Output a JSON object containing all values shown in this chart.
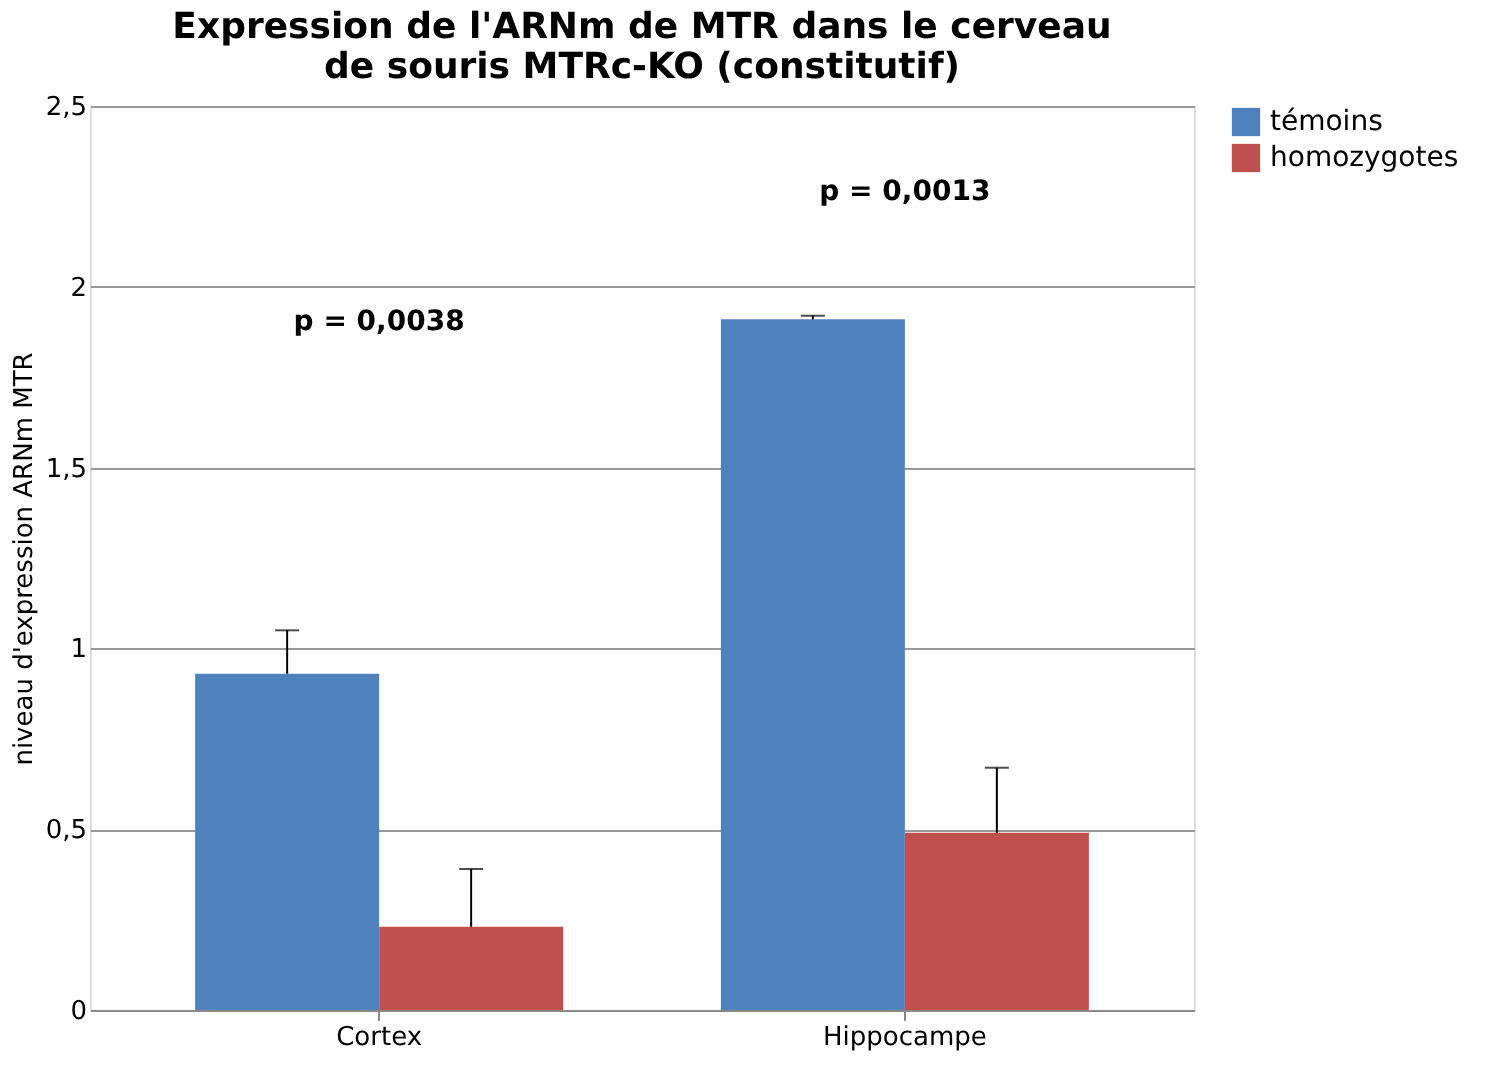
{
  "chart_data": {
    "type": "bar",
    "title": [
      "Expression de l'ARNm de MTR dans le cerveau",
      "de souris MTRc-KO (constitutif)"
    ],
    "ylabel": "niveau d'expression ARNm MTR",
    "categories": [
      "Cortex",
      "Hippocampe"
    ],
    "series": [
      {
        "name": "témoins",
        "color": "#4f81bd",
        "values": [
          0.93,
          1.91
        ],
        "errors": [
          [
            0.93,
            1.05
          ],
          [
            1.91,
            1.92
          ]
        ]
      },
      {
        "name": "homozygotes",
        "color": "#c0504d",
        "values": [
          0.23,
          0.49
        ],
        "errors": [
          [
            0.23,
            0.39
          ],
          [
            0.49,
            0.67
          ]
        ]
      }
    ],
    "annotations": [
      "p = 0,0038",
      "p = 0,0013"
    ],
    "ylim": [
      0,
      2.5
    ],
    "yticks": [
      0,
      {
        "value": 0.5,
        "label": "0,5"
      },
      1,
      {
        "value": 1.5,
        "label": "1,5"
      },
      2,
      {
        "value": 2.5,
        "label": "2,5"
      }
    ],
    "grid": "y",
    "legend": "right"
  }
}
